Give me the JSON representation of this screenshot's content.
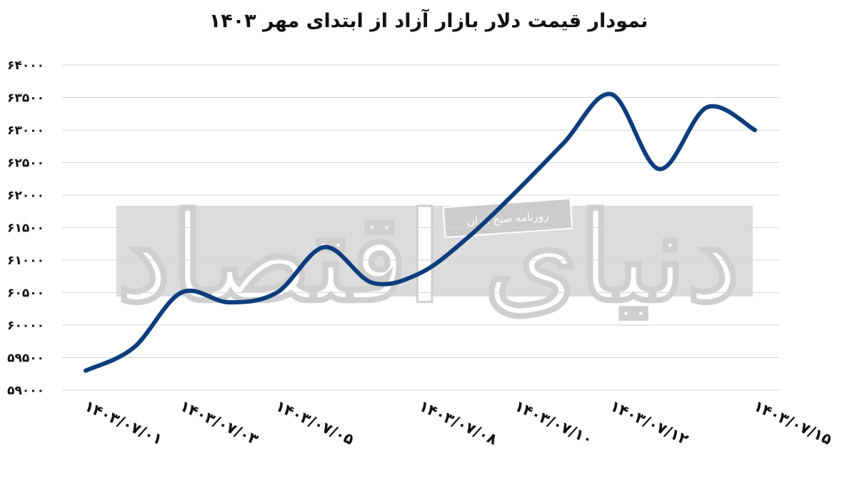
{
  "chart_data": {
    "type": "line",
    "title": "نمودار قیمت دلار بازار آزاد از ابتدای مهر ۱۴۰۳",
    "xlabel": "",
    "ylabel": "",
    "ylim": [
      59000,
      64000
    ],
    "yticks": [
      59000,
      59500,
      60000,
      60500,
      61000,
      61500,
      62000,
      62500,
      63000,
      63500,
      64000
    ],
    "ytick_labels": [
      "۵۹۰۰۰",
      "۵۹۵۰۰",
      "۶۰۰۰۰",
      "۶۰۵۰۰",
      "۶۱۰۰۰",
      "۶۱۵۰۰",
      "۶۲۰۰۰",
      "۶۲۵۰۰",
      "۶۳۰۰۰",
      "۶۳۵۰۰",
      "۶۴۰۰۰"
    ],
    "xtick_labels": [
      "۱۴۰۳/۰۷/۰۱",
      "۱۴۰۳/۰۷/۰۳",
      "۱۴۰۳/۰۷/۰۵",
      "۱۴۰۳/۰۷/۰۸",
      "۱۴۰۳/۰۷/۱۰",
      "۱۴۰۳/۰۷/۱۲",
      "۱۴۰۳/۰۷/۱۵"
    ],
    "grid": true,
    "line_color": "#0d3d7c",
    "series": [
      {
        "points": [
          {
            "x": "1403/07/01",
            "y": 59300
          },
          {
            "x": "1403/07/02",
            "y": 59650
          },
          {
            "x": "1403/07/03",
            "y": 60500
          },
          {
            "x": "1403/07/04",
            "y": 60350
          },
          {
            "x": "1403/07/05",
            "y": 60500
          },
          {
            "x": "1403/07/06",
            "y": 61200
          },
          {
            "x": "1403/07/07",
            "y": 60650
          },
          {
            "x": "1403/07/08",
            "y": 60800
          },
          {
            "x": "1403/07/09",
            "y": 61350
          },
          {
            "x": "1403/07/10",
            "y": 62050
          },
          {
            "x": "1403/07/11",
            "y": 62800
          },
          {
            "x": "1403/07/12",
            "y": 63550
          },
          {
            "x": "1403/07/13",
            "y": 62400
          },
          {
            "x": "1403/07/14",
            "y": 63350
          },
          {
            "x": "1403/07/15",
            "y": 63000
          }
        ]
      }
    ]
  },
  "watermark": {
    "brand": "دنیای اقتصاد",
    "badge": "روزنامه صبح ایران"
  }
}
